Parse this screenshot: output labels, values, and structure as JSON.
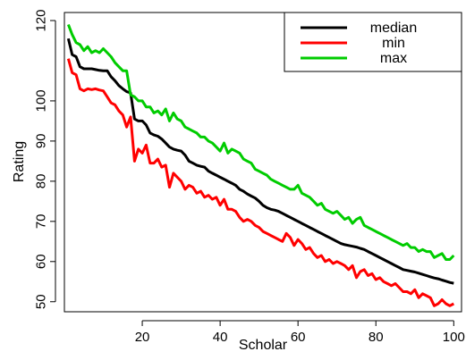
{
  "chart_data": {
    "type": "line",
    "title": "",
    "xlabel": "Scholar",
    "ylabel": "Rating",
    "xlim": [
      0,
      102
    ],
    "ylim": [
      47.5,
      122
    ],
    "x_ticks": [
      20,
      40,
      60,
      80,
      100
    ],
    "y_ticks": [
      50,
      60,
      70,
      80,
      90,
      100,
      120
    ],
    "legend_position": "top-right",
    "grid": false,
    "x": [
      1,
      2,
      3,
      4,
      5,
      6,
      7,
      8,
      9,
      10,
      11,
      12,
      13,
      14,
      15,
      16,
      17,
      18,
      19,
      20,
      21,
      22,
      23,
      24,
      25,
      26,
      27,
      28,
      29,
      30,
      31,
      32,
      33,
      34,
      35,
      36,
      37,
      38,
      39,
      40,
      41,
      42,
      43,
      44,
      45,
      46,
      47,
      48,
      49,
      50,
      51,
      52,
      53,
      54,
      55,
      56,
      57,
      58,
      59,
      60,
      61,
      62,
      63,
      64,
      65,
      66,
      67,
      68,
      69,
      70,
      71,
      72,
      73,
      74,
      75,
      76,
      77,
      78,
      79,
      80,
      81,
      82,
      83,
      84,
      85,
      86,
      87,
      88,
      89,
      90,
      91,
      92,
      93,
      94,
      95,
      96,
      97,
      98,
      99,
      100
    ],
    "series": [
      {
        "name": "median",
        "color": "#000000",
        "values": [
          115.5,
          111.5,
          111.0,
          108.5,
          108.0,
          108.0,
          108.0,
          107.8,
          107.6,
          107.5,
          107.5,
          106.0,
          105.0,
          103.8,
          103.0,
          102.3,
          102.0,
          95.5,
          95.0,
          95.0,
          94.0,
          92.0,
          91.5,
          91.2,
          90.5,
          89.5,
          88.5,
          88.0,
          87.7,
          87.5,
          86.5,
          85.0,
          84.5,
          84.0,
          83.7,
          83.5,
          82.5,
          82.0,
          81.5,
          81.0,
          80.5,
          80.0,
          79.5,
          79.0,
          78.0,
          77.5,
          76.8,
          76.3,
          75.8,
          75.0,
          74.0,
          73.4,
          73.0,
          72.8,
          72.5,
          72.0,
          71.5,
          71.0,
          70.5,
          70.0,
          69.5,
          69.0,
          68.5,
          68.0,
          67.5,
          67.0,
          66.5,
          66.0,
          65.5,
          65.0,
          64.5,
          64.2,
          64.0,
          63.8,
          63.6,
          63.3,
          63.0,
          62.5,
          62.0,
          61.5,
          61.0,
          60.5,
          60.0,
          59.5,
          59.0,
          58.5,
          58.0,
          57.8,
          57.6,
          57.4,
          57.1,
          56.8,
          56.5,
          56.2,
          55.9,
          55.7,
          55.4,
          55.1,
          54.8,
          54.6
        ]
      },
      {
        "name": "min",
        "color": "#ff0000",
        "values": [
          110.5,
          107.0,
          106.5,
          103.0,
          102.5,
          103.0,
          102.8,
          103.0,
          102.7,
          102.5,
          101.0,
          99.5,
          99.0,
          97.5,
          96.5,
          93.5,
          96.0,
          85.0,
          88.0,
          87.0,
          89.0,
          84.5,
          84.5,
          85.5,
          83.5,
          84.0,
          78.5,
          82.0,
          81.0,
          80.0,
          78.0,
          79.0,
          78.5,
          77.0,
          77.5,
          76.0,
          76.5,
          75.5,
          76.0,
          74.0,
          75.5,
          73.0,
          73.0,
          72.5,
          71.0,
          70.0,
          70.5,
          70.0,
          69.0,
          68.5,
          67.5,
          67.0,
          66.5,
          66.0,
          65.5,
          65.0,
          67.0,
          66.0,
          64.0,
          65.5,
          64.5,
          63.0,
          63.5,
          62.0,
          61.0,
          61.5,
          60.0,
          60.5,
          59.5,
          60.0,
          59.5,
          59.0,
          58.0,
          59.0,
          56.0,
          57.5,
          58.0,
          56.5,
          57.0,
          55.5,
          56.0,
          55.0,
          54.5,
          54.0,
          54.5,
          53.5,
          52.5,
          52.5,
          52.0,
          53.0,
          51.0,
          52.0,
          51.5,
          51.0,
          49.0,
          49.5,
          50.5,
          49.5,
          49.0,
          49.5
        ]
      },
      {
        "name": "max",
        "color": "#00cc00",
        "values": [
          119.0,
          116.5,
          114.5,
          114.0,
          112.5,
          113.5,
          112.0,
          112.5,
          112.0,
          113.0,
          112.0,
          111.0,
          109.5,
          108.5,
          107.5,
          107.5,
          101.5,
          101.0,
          100.0,
          100.0,
          98.5,
          98.5,
          97.0,
          97.5,
          96.5,
          98.0,
          95.0,
          97.0,
          95.5,
          95.0,
          93.5,
          93.0,
          92.5,
          92.0,
          91.0,
          91.0,
          90.0,
          89.5,
          88.5,
          87.5,
          89.5,
          87.0,
          88.0,
          87.5,
          87.0,
          85.5,
          85.0,
          84.5,
          83.0,
          82.5,
          82.0,
          81.5,
          80.5,
          80.0,
          79.5,
          79.0,
          78.5,
          78.0,
          78.0,
          79.0,
          77.0,
          76.5,
          76.0,
          75.0,
          74.0,
          74.5,
          73.0,
          72.5,
          72.0,
          72.5,
          71.5,
          70.5,
          71.0,
          69.5,
          70.5,
          71.0,
          69.0,
          68.5,
          68.0,
          67.5,
          67.0,
          66.5,
          66.0,
          65.5,
          65.0,
          64.5,
          64.0,
          64.5,
          63.5,
          63.5,
          62.5,
          63.0,
          62.5,
          62.5,
          61.0,
          61.5,
          62.0,
          60.5,
          60.5,
          61.5
        ]
      }
    ]
  }
}
